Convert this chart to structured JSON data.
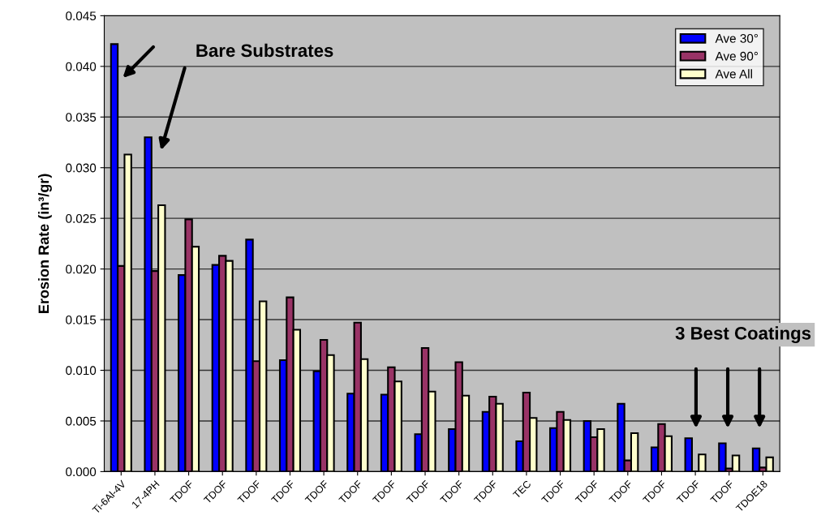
{
  "chart_data": {
    "type": "bar",
    "ylabel": "Erosion Rate (in³/gr)",
    "categories": [
      "Ti-6Al-4V",
      "17-4PH",
      "TDOF",
      "TDOF",
      "TDOF",
      "TDOF",
      "TDOF",
      "TDOF",
      "TDOF",
      "TDOF",
      "TDOF",
      "TDOF",
      "TEC",
      "TDOF",
      "TDOF",
      "TDOF",
      "TDOF",
      "TDOF",
      "TDOF",
      "TDOE18"
    ],
    "series": [
      {
        "name": "Ave 30°",
        "color": "#0000ff",
        "values": [
          0.0422,
          0.033,
          0.0194,
          0.0204,
          0.0229,
          0.011,
          0.0099,
          0.0077,
          0.0076,
          0.0037,
          0.0042,
          0.0059,
          0.003,
          0.0043,
          0.005,
          0.0067,
          0.0024,
          0.0033,
          0.0028,
          0.0023
        ]
      },
      {
        "name": "Ave 90°",
        "color": "#993366",
        "values": [
          0.0203,
          0.0198,
          0.0249,
          0.0213,
          0.0109,
          0.0172,
          0.013,
          0.0147,
          0.0103,
          0.0122,
          0.0108,
          0.0074,
          0.0078,
          0.0059,
          0.0034,
          0.0011,
          0.0047,
          null,
          0.0003,
          0.0004
        ]
      },
      {
        "name": "Ave All",
        "color": "#ffffcc",
        "values": [
          0.0313,
          0.0263,
          0.0222,
          0.0208,
          0.0168,
          0.014,
          0.0115,
          0.0111,
          0.0089,
          0.0079,
          0.0075,
          0.0067,
          0.0053,
          0.0051,
          0.0042,
          0.0038,
          0.0035,
          0.0017,
          0.0016,
          0.0014
        ]
      }
    ],
    "ylim": [
      0,
      0.045
    ],
    "yticks": [
      {
        "value": 0,
        "label": "0.000"
      },
      {
        "value": 0.005,
        "label": "0.005"
      },
      {
        "value": 0.01,
        "label": "0.010"
      },
      {
        "value": 0.015,
        "label": "0.015"
      },
      {
        "value": 0.02,
        "label": "0.020"
      },
      {
        "value": 0.025,
        "label": "0.025"
      },
      {
        "value": 0.03,
        "label": "0.030"
      },
      {
        "value": 0.035,
        "label": "0.035"
      },
      {
        "value": 0.04,
        "label": "0.040"
      },
      {
        "value": 0.045,
        "label": "0.045"
      }
    ],
    "grid": "y",
    "legend": "top right",
    "annotations": [
      "Bare Substrates",
      "3 Best Coatings"
    ]
  }
}
